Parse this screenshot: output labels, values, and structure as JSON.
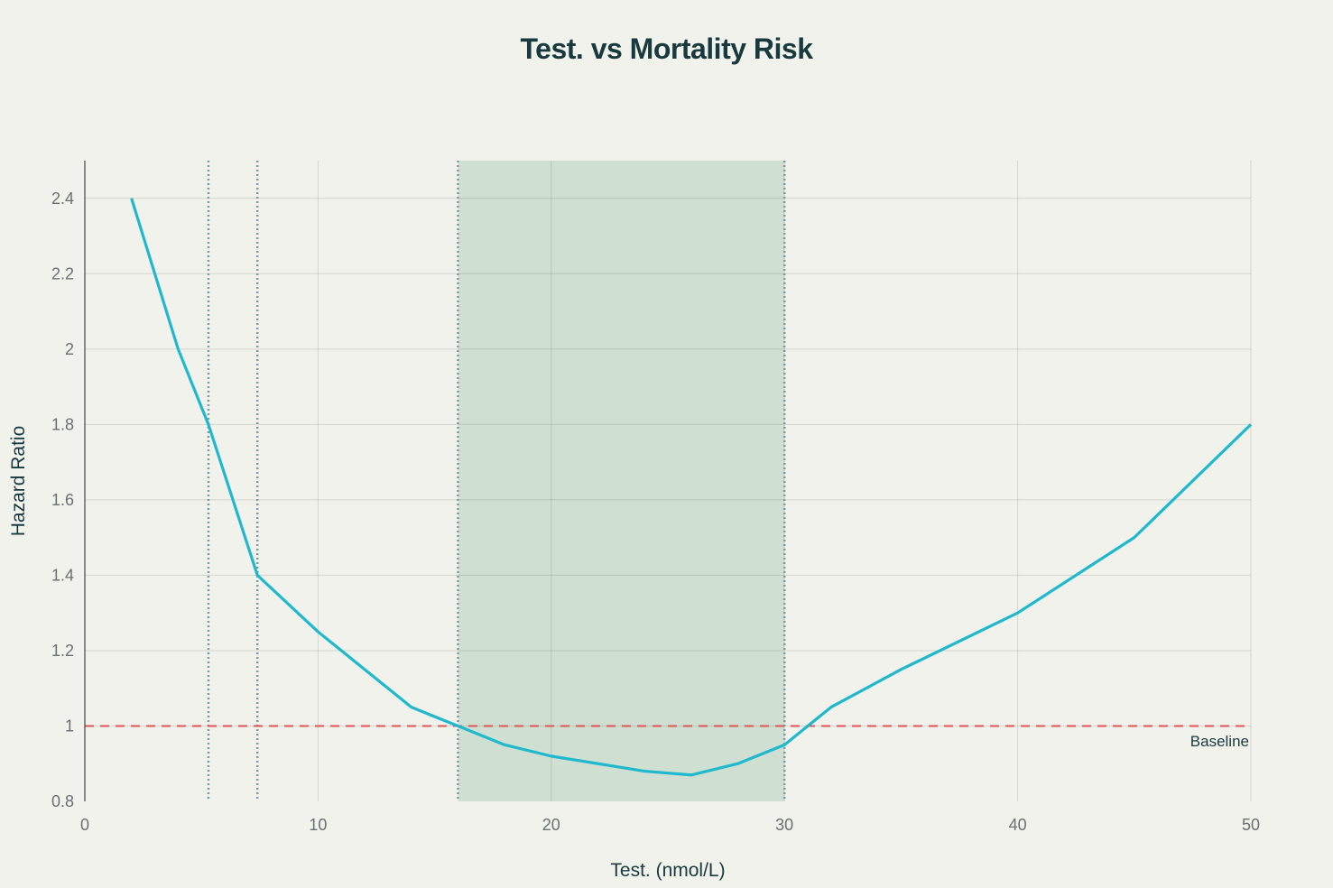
{
  "chart_data": {
    "type": "line",
    "title": "Test. vs Mortality Risk",
    "xlabel": "Test. (nmol/L)",
    "ylabel": "Hazard Ratio",
    "xlim": [
      0,
      50
    ],
    "ylim": [
      0.8,
      2.5
    ],
    "xticks": [
      0,
      10,
      20,
      30,
      40,
      50
    ],
    "yticks": [
      0.8,
      1,
      1.2,
      1.4,
      1.6,
      1.8,
      2,
      2.2,
      2.4
    ],
    "grid": true,
    "series": [
      {
        "name": "Hazard Ratio",
        "color": "#1fb8cd",
        "x": [
          2,
          4,
          5.3,
          7.4,
          10,
          14,
          16,
          18,
          20,
          24,
          26,
          28,
          30,
          32,
          35,
          40,
          45,
          50
        ],
        "y": [
          2.4,
          2.0,
          1.8,
          1.4,
          1.25,
          1.05,
          1.0,
          0.95,
          0.92,
          0.88,
          0.87,
          0.9,
          0.95,
          1.05,
          1.15,
          1.3,
          1.5,
          1.8
        ]
      }
    ],
    "shaded_region": {
      "x": [
        16,
        30
      ],
      "color": "#cfe0d3"
    },
    "vertical_lines": [
      5.3,
      7.4,
      16,
      30
    ],
    "vertical_line_color": "#7c9a9f",
    "baseline": {
      "y": 1,
      "label": "Baseline",
      "color": "#e05454"
    }
  }
}
